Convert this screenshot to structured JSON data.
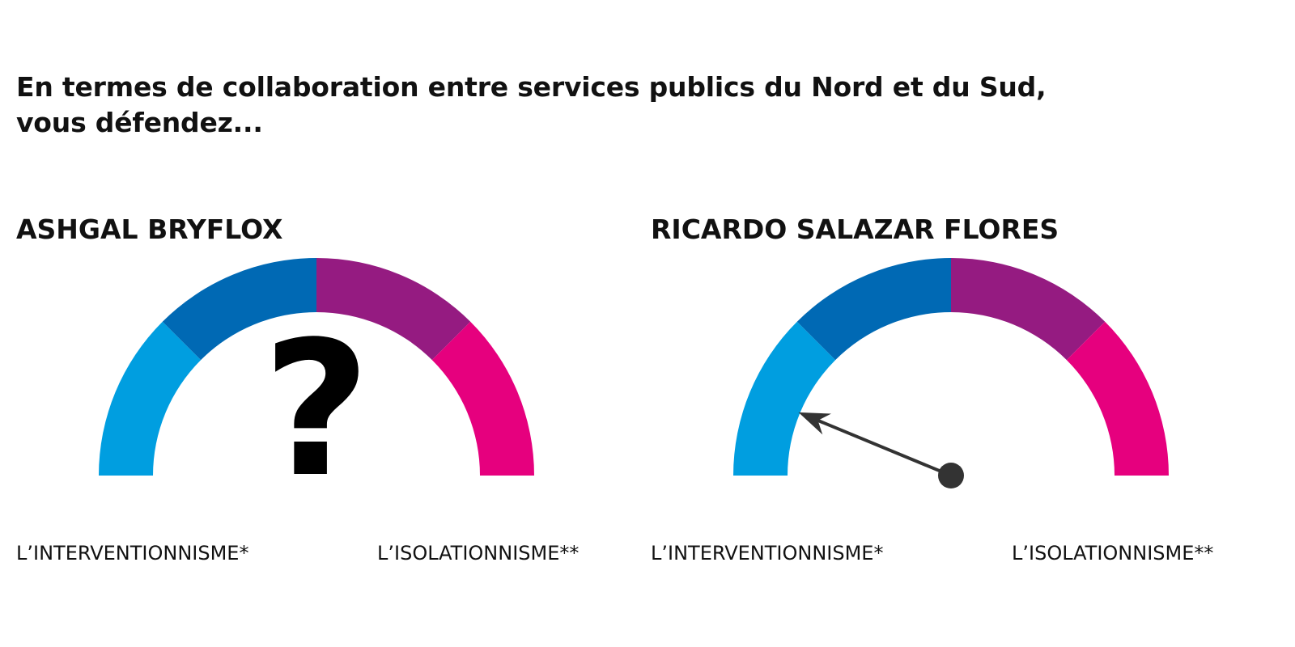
{
  "question": {
    "line1": "En termes de collaboration entre services publics du Nord et du Sud,",
    "line2": "vous défendez..."
  },
  "chart_data": [
    {
      "type": "gauge",
      "title": "ASHGAL BRYFLOX",
      "segments": [
        {
          "color": "#009ee0"
        },
        {
          "color": "#0069b4"
        },
        {
          "color": "#951b81"
        },
        {
          "color": "#e6007e"
        }
      ],
      "scale_labels": {
        "left": "L’INTERVENTIONNISME*",
        "right": "L’ISOLATIONNISME**"
      },
      "answer": null,
      "placeholder": "?",
      "scale_range": [
        0,
        4
      ]
    },
    {
      "type": "gauge",
      "title": "RICARDO SALAZAR FLORES",
      "segments": [
        {
          "color": "#009ee0"
        },
        {
          "color": "#0069b4"
        },
        {
          "color": "#951b81"
        },
        {
          "color": "#e6007e"
        }
      ],
      "scale_labels": {
        "left": "L’INTERVENTIONNISME*",
        "right": "L’ISOLATIONNISME**"
      },
      "needle_value": 0.5,
      "needle_color": "#333333",
      "scale_range": [
        0,
        4
      ]
    }
  ]
}
